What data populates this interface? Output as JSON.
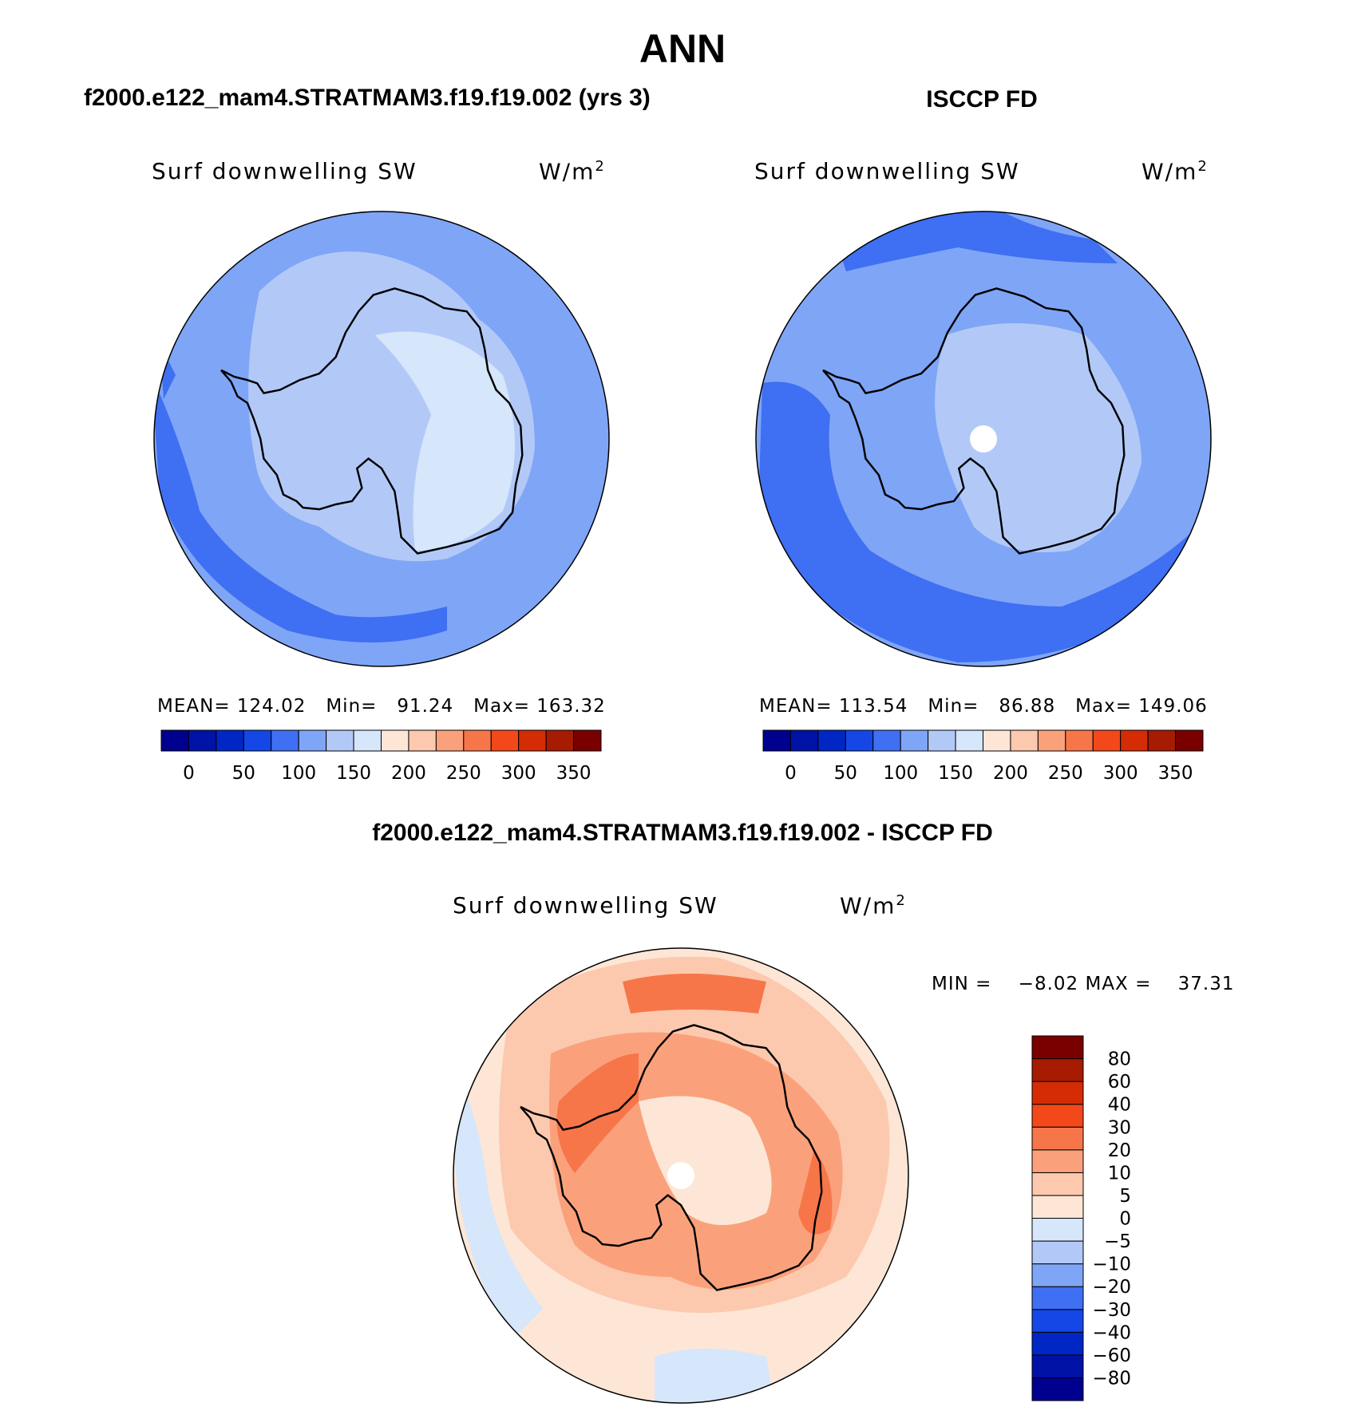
{
  "page": {
    "title": "ANN",
    "colors": {
      "land_outline": "#000000",
      "background": "#ffffff"
    }
  },
  "chart_data": [
    {
      "type": "heatmap",
      "projection": "south-polar stereographic",
      "title": "f2000.e122_mam4.STRATMAM3.f19.f19.002 (yrs 3)",
      "left_label": "Surf downwelling SW",
      "right_label": "W/m",
      "right_label_sup": "2",
      "stats": {
        "mean_label": "MEAN=",
        "mean": "124.02",
        "min_label": "Min=",
        "min": "91.24",
        "max_label": "Max=",
        "max": "163.32"
      },
      "colorbar": {
        "orientation": "horizontal",
        "levels": [
          0,
          25,
          50,
          75,
          100,
          125,
          150,
          175,
          200,
          225,
          250,
          275,
          300,
          325,
          350
        ],
        "tick_labels": [
          "0",
          "50",
          "100",
          "150",
          "200",
          "250",
          "300",
          "350"
        ],
        "colors": [
          "#00008f",
          "#0013a6",
          "#0027c6",
          "#1447e6",
          "#3f6ff2",
          "#7fa5f6",
          "#b2c9f8",
          "#d6e6fb",
          "#fde6d6",
          "#fcc9af",
          "#faa17c",
          "#f6764a",
          "#f3481a",
          "#d52c05",
          "#a61b02",
          "#7a0000"
        ]
      },
      "field_summary": {
        "open_ocean": "100-125",
        "southern_belt": "75-100",
        "coastal_ring": "125-150",
        "plateau": "150-175"
      }
    },
    {
      "type": "heatmap",
      "projection": "south-polar stereographic",
      "title": "ISCCP FD",
      "left_label": "Surf downwelling SW",
      "right_label": "W/m",
      "right_label_sup": "2",
      "stats": {
        "mean_label": "MEAN=",
        "mean": "113.54",
        "min_label": "Min=",
        "min": "86.88",
        "max_label": "Max=",
        "max": "149.06"
      },
      "colorbar": {
        "orientation": "horizontal",
        "levels": [
          0,
          25,
          50,
          75,
          100,
          125,
          150,
          175,
          200,
          225,
          250,
          275,
          300,
          325,
          350
        ],
        "tick_labels": [
          "0",
          "50",
          "100",
          "150",
          "200",
          "250",
          "300",
          "350"
        ],
        "colors": [
          "#00008f",
          "#0013a6",
          "#0027c6",
          "#1447e6",
          "#3f6ff2",
          "#7fa5f6",
          "#b2c9f8",
          "#d6e6fb",
          "#fde6d6",
          "#fcc9af",
          "#faa17c",
          "#f6764a",
          "#f3481a",
          "#d52c05",
          "#a61b02",
          "#7a0000"
        ]
      },
      "field_summary": {
        "open_ocean": "100-125",
        "southern_belt": "75-100",
        "continent": "125-150",
        "pole": "missing"
      }
    },
    {
      "type": "heatmap",
      "projection": "south-polar stereographic",
      "title": "f2000.e122_mam4.STRATMAM3.f19.f19.002 - ISCCP FD",
      "left_label": "Surf downwelling SW",
      "right_label": "W/m",
      "right_label_sup": "2",
      "stats": {
        "min_label": "MIN =",
        "min": "−8.02",
        "max_label": "MAX =",
        "max": "37.31"
      },
      "colorbar": {
        "orientation": "vertical",
        "levels": [
          -80,
          -60,
          -40,
          -30,
          -20,
          -10,
          -5,
          0,
          5,
          10,
          20,
          30,
          40,
          60,
          80
        ],
        "tick_labels": [
          "−80",
          "−60",
          "−40",
          "−30",
          "−20",
          "−10",
          "−5",
          "0",
          "5",
          "10",
          "20",
          "30",
          "40",
          "60",
          "80"
        ],
        "colors": [
          "#00008f",
          "#0013a6",
          "#0027c6",
          "#1447e6",
          "#3f6ff2",
          "#7fa5f6",
          "#b2c9f8",
          "#d6e6fb",
          "#fde6d6",
          "#fcc9af",
          "#faa17c",
          "#f6764a",
          "#f3481a",
          "#d52c05",
          "#a61b02",
          "#7a0000"
        ]
      },
      "field_summary": {
        "outer_ocean": "0-5",
        "mid_ocean": "5-10",
        "coast": "20-30",
        "plateau": "5-10",
        "pole": "missing"
      }
    }
  ]
}
